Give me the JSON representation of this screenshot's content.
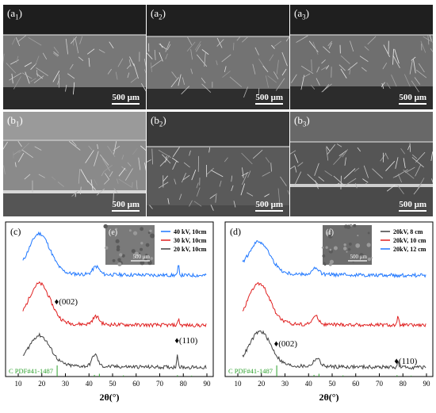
{
  "sem_panels": [
    {
      "id": "a1",
      "label": "a",
      "sub": "1",
      "scale": "500 μm"
    },
    {
      "id": "a2",
      "label": "a",
      "sub": "2",
      "scale": "500 μm"
    },
    {
      "id": "a3",
      "label": "a",
      "sub": "3",
      "scale": "500 μm"
    },
    {
      "id": "b1",
      "label": "b",
      "sub": "1",
      "scale": "500 μm"
    },
    {
      "id": "b2",
      "label": "b",
      "sub": "2",
      "scale": "500 μm"
    },
    {
      "id": "b3",
      "label": "b",
      "sub": "3",
      "scale": "500 μm"
    }
  ],
  "chart_data": [
    {
      "type": "line",
      "panel_label": "(c)",
      "inset_label": "(e)",
      "inset_scale": "500 μm",
      "xlabel": "2θ(°)",
      "xlim": [
        10,
        90
      ],
      "x_ticks": [
        10,
        20,
        30,
        40,
        50,
        60,
        70,
        80,
        90
      ],
      "legend": "top-right",
      "series": [
        {
          "name": "40 kV, 10cm",
          "color": "#1f77ff",
          "offset": 2.0,
          "peaks": [
            [
              19,
              1.0,
              4.5
            ],
            [
              43,
              0.2,
              1.4
            ],
            [
              78,
              0.25,
              0.3
            ]
          ]
        },
        {
          "name": "30 kV, 10cm",
          "color": "#e02020",
          "offset": 1.0,
          "peaks": [
            [
              19,
              1.0,
              4.5
            ],
            [
              43,
              0.2,
              1.4
            ],
            [
              78,
              0.18,
              0.3
            ]
          ]
        },
        {
          "name": "20 kV, 10cm",
          "color": "#404040",
          "offset": 0.0,
          "peaks": [
            [
              19,
              0.75,
              4.5
            ],
            [
              42.5,
              0.3,
              1.2
            ],
            [
              77.5,
              0.35,
              0.3
            ]
          ]
        }
      ],
      "annotations": [
        {
          "text": "♦(002)",
          "x": 26
        },
        {
          "text": "♦(110)",
          "x": 77
        }
      ],
      "reference": {
        "label": "C PDF#41-1487",
        "lines": [
          [
            26.5,
            1.0
          ],
          [
            42.3,
            0.15
          ],
          [
            44.4,
            0.25
          ],
          [
            54.6,
            0.1
          ],
          [
            77.5,
            0.12
          ],
          [
            83.5,
            0.08
          ]
        ]
      }
    },
    {
      "type": "line",
      "panel_label": "(d)",
      "inset_label": "(f)",
      "inset_scale": "500 μm",
      "xlabel": "2θ(°)",
      "xlim": [
        10,
        90
      ],
      "x_ticks": [
        10,
        20,
        30,
        40,
        50,
        60,
        70,
        80,
        90
      ],
      "legend": "top-right",
      "series": [
        {
          "name": "20kV, 8 cm",
          "color": "#404040",
          "offset": 0.0,
          "peaks": [
            [
              19.5,
              0.85,
              4.5
            ],
            [
              43.5,
              0.2,
              1.4
            ],
            [
              78,
              0.15,
              0.3
            ]
          ]
        },
        {
          "name": "20kV, 10 cm",
          "color": "#e02020",
          "offset": 1.0,
          "peaks": [
            [
              19,
              1.0,
              4.5
            ],
            [
              43,
              0.2,
              1.4
            ],
            [
              78,
              0.25,
              0.3
            ]
          ]
        },
        {
          "name": "20kV, 12 cm",
          "color": "#1f77ff",
          "offset": 2.0,
          "peaks": [
            [
              19,
              0.8,
              4.5
            ],
            [
              43,
              0.15,
              1.4
            ]
          ]
        }
      ],
      "annotations": [
        {
          "text": "♦(002)",
          "x": 26
        },
        {
          "text": "♦(110)",
          "x": 77
        }
      ],
      "reference": {
        "label": "C PDF#41-1487",
        "lines": [
          [
            26.5,
            1.0
          ],
          [
            42.3,
            0.15
          ],
          [
            44.4,
            0.25
          ],
          [
            54.6,
            0.1
          ],
          [
            77.5,
            0.12
          ],
          [
            83.5,
            0.08
          ]
        ]
      }
    }
  ]
}
